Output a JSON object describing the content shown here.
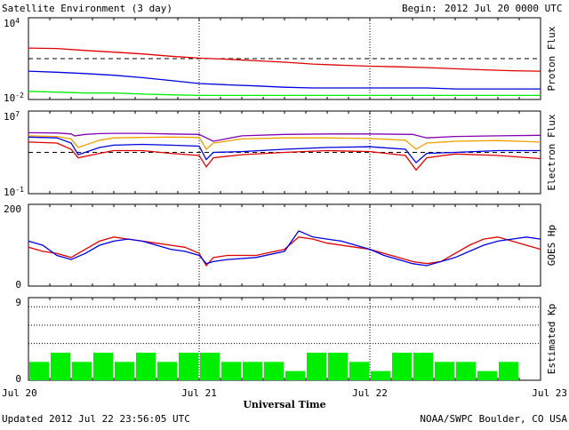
{
  "header": {
    "title": "Satellite Environment (3 day)",
    "begin_label": "Begin:",
    "begin_value": "2012 Jul 20 0000 UTC"
  },
  "footer": {
    "updated": "Updated 2012 Jul 22 23:56:05 UTC",
    "credit": "NOAA/SWPC Boulder, CO USA"
  },
  "x_axis": {
    "label": "Universal Time",
    "ticks": [
      "Jul 20",
      "Jul 21",
      "Jul 22",
      "Jul 23"
    ],
    "range_hours": [
      0,
      72
    ]
  },
  "colors": {
    "red": "#e00000",
    "blue": "#0000e0",
    "green": "#00ee00",
    "orange": "#f0a000",
    "purple": "#8000b0"
  },
  "chart_data": [
    {
      "type": "line",
      "ylabel": "Proton Flux",
      "yscale": "log",
      "ylim": [
        0.01,
        10000
      ],
      "ytick_labels": [
        {
          "base": "10",
          "exp": "4",
          "value": 10000
        },
        {
          "base": "10",
          "exp": "-2",
          "value": 0.01
        }
      ],
      "reference_line": 10,
      "series": [
        {
          "color": "red",
          "x": [
            0,
            4,
            8,
            12,
            16,
            20,
            24,
            28,
            32,
            36,
            40,
            44,
            48,
            52,
            56,
            60,
            64,
            68,
            72
          ],
          "y": [
            60,
            55,
            40,
            30,
            22,
            15,
            11,
            9,
            7,
            5.5,
            4,
            3.3,
            2.8,
            2.5,
            2.2,
            1.8,
            1.5,
            1.3,
            1.2
          ]
        },
        {
          "color": "blue",
          "x": [
            0,
            4,
            8,
            12,
            16,
            20,
            24,
            28,
            32,
            36,
            40,
            44,
            48,
            52,
            56,
            60,
            64,
            68,
            72
          ],
          "y": [
            1.2,
            1.0,
            0.8,
            0.6,
            0.4,
            0.25,
            0.15,
            0.12,
            0.1,
            0.08,
            0.07,
            0.07,
            0.07,
            0.07,
            0.07,
            0.06,
            0.06,
            0.06,
            0.06
          ]
        },
        {
          "color": "green",
          "x": [
            0,
            4,
            8,
            12,
            16,
            20,
            24,
            28,
            32,
            36,
            40,
            44,
            48,
            52,
            56,
            60,
            64,
            68,
            72
          ],
          "y": [
            0.04,
            0.035,
            0.03,
            0.03,
            0.025,
            0.022,
            0.02,
            0.02,
            0.02,
            0.02,
            0.02,
            0.02,
            0.02,
            0.02,
            0.02,
            0.02,
            0.02,
            0.02,
            0.02
          ]
        }
      ]
    },
    {
      "type": "line",
      "ylabel": "Electron Flux",
      "yscale": "log",
      "ylim": [
        0.1,
        10000000
      ],
      "ytick_labels": [
        {
          "base": "10",
          "exp": "7",
          "value": 10000000
        },
        {
          "base": "10",
          "exp": "-1",
          "value": 0.1
        }
      ],
      "reference_line": 1000,
      "series": [
        {
          "color": "purple",
          "x": [
            0,
            4,
            6,
            6.5,
            8,
            10,
            12,
            16,
            20,
            24,
            26,
            30,
            36,
            42,
            48,
            54,
            56,
            60,
            66,
            72
          ],
          "y": [
            80000,
            75000,
            60000,
            40000,
            55000,
            65000,
            70000,
            70000,
            60000,
            55000,
            12000,
            40000,
            55000,
            60000,
            60000,
            55000,
            25000,
            35000,
            40000,
            45000
          ]
        },
        {
          "color": "orange",
          "x": [
            0,
            4,
            6,
            7,
            10,
            12,
            16,
            20,
            24,
            25,
            26,
            30,
            36,
            42,
            48,
            53,
            54.5,
            56,
            60,
            66,
            72
          ],
          "y": [
            40000,
            35000,
            20000,
            3000,
            15000,
            25000,
            28000,
            30000,
            28000,
            2000,
            8000,
            20000,
            25000,
            25000,
            22000,
            15000,
            2000,
            8000,
            12000,
            14000,
            10000
          ]
        },
        {
          "color": "blue",
          "x": [
            0,
            4,
            6,
            7,
            10,
            12,
            16,
            20,
            24,
            25,
            26,
            30,
            36,
            42,
            48,
            53,
            54.5,
            56,
            60,
            66,
            72
          ],
          "y": [
            30000,
            25000,
            8000,
            600,
            3000,
            5000,
            6000,
            5000,
            4000,
            200,
            1000,
            1200,
            2000,
            3000,
            3500,
            2000,
            100,
            800,
            1000,
            1500,
            1500
          ]
        },
        {
          "color": "red",
          "x": [
            0,
            4,
            6,
            7,
            10,
            12,
            16,
            20,
            24,
            25,
            26,
            30,
            36,
            42,
            48,
            53,
            54.5,
            56,
            60,
            66,
            72
          ],
          "y": [
            10000,
            8000,
            2000,
            300,
            800,
            1500,
            1500,
            800,
            500,
            40,
            300,
            600,
            1000,
            1500,
            1200,
            500,
            20,
            300,
            700,
            500,
            250
          ]
        }
      ]
    },
    {
      "type": "line",
      "ylabel": "GOES Hp",
      "ylim": [
        0,
        200
      ],
      "yticks": [
        200,
        0
      ],
      "series": [
        {
          "color": "red",
          "x": [
            0,
            2,
            4,
            6,
            8,
            10,
            12,
            14,
            16,
            18,
            20,
            22,
            24,
            25,
            26,
            28,
            32,
            36,
            38,
            40,
            42,
            44,
            46,
            48,
            50,
            52,
            54,
            56,
            58,
            60,
            62,
            64,
            66,
            68,
            70,
            72
          ],
          "y": [
            95,
            85,
            80,
            70,
            90,
            110,
            120,
            115,
            110,
            105,
            100,
            95,
            80,
            50,
            70,
            75,
            75,
            90,
            120,
            115,
            105,
            100,
            95,
            90,
            80,
            70,
            60,
            55,
            60,
            80,
            100,
            115,
            120,
            110,
            100,
            90
          ]
        },
        {
          "color": "blue",
          "x": [
            0,
            2,
            4,
            6,
            8,
            10,
            12,
            14,
            16,
            18,
            20,
            22,
            24,
            25,
            26,
            28,
            32,
            36,
            38,
            40,
            42,
            44,
            46,
            48,
            50,
            52,
            54,
            56,
            58,
            60,
            62,
            64,
            66,
            68,
            70,
            72
          ],
          "y": [
            110,
            100,
            75,
            65,
            80,
            100,
            110,
            115,
            110,
            100,
            90,
            85,
            75,
            55,
            60,
            65,
            70,
            85,
            135,
            120,
            115,
            110,
            100,
            90,
            75,
            65,
            55,
            50,
            60,
            70,
            85,
            100,
            110,
            115,
            120,
            115
          ]
        }
      ]
    },
    {
      "type": "bar",
      "ylabel": "Estimated Kp",
      "ylim": [
        0,
        9
      ],
      "yticks": [
        9,
        0
      ],
      "gridlines": [
        8,
        6,
        4
      ],
      "bar_width_hours": 3,
      "color": "green",
      "values": [
        2,
        3,
        2,
        3,
        2,
        3,
        2,
        3,
        3,
        2,
        2,
        2,
        1,
        3,
        3,
        2,
        1,
        3,
        3,
        2,
        2,
        1,
        2,
        0
      ]
    }
  ]
}
